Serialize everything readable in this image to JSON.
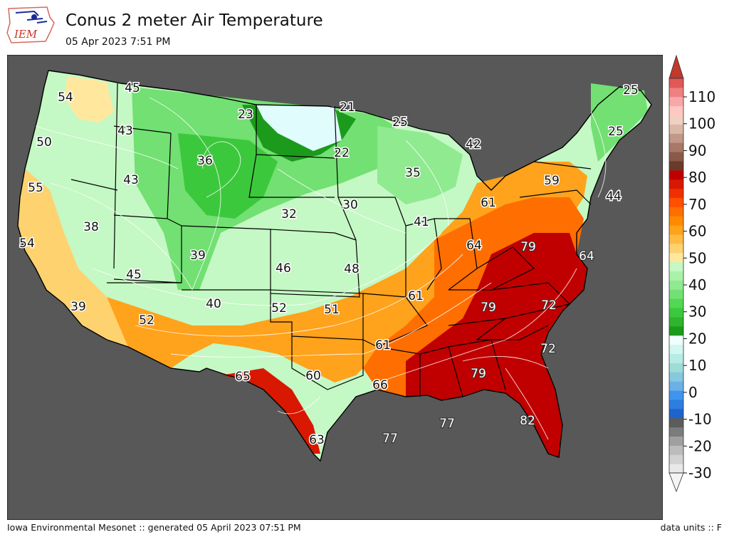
{
  "header": {
    "logo_text": "IEM",
    "title": "Conus 2 meter Air Temperature",
    "subtitle": "05 Apr 2023 7:51 PM"
  },
  "footer": {
    "left": "Iowa Environmental Mesonet :: generated 05 April 2023 07:51 PM",
    "right": "data units :: F"
  },
  "colors": {
    "ocean": "#585858",
    "border": "#000000",
    "contour": "#ffffff"
  },
  "colorbar": {
    "labels": [
      "110",
      "100",
      "90",
      "80",
      "70",
      "60",
      "50",
      "40",
      "30",
      "20",
      "10",
      "0",
      "-10",
      "-20",
      "-30"
    ],
    "bands": [
      "#e8e8e8",
      "#d2d2d2",
      "#bcbcbc",
      "#a0a0a0",
      "#7c7c7c",
      "#5c5c5c",
      "#1f63cc",
      "#2e7de0",
      "#3f94ee",
      "#6ab2e6",
      "#86c8de",
      "#9edcd8",
      "#b6ece4",
      "#d2f6f2",
      "#f0fefc",
      "#1b9a1b",
      "#2db52d",
      "#3cc83c",
      "#52d852",
      "#72e072",
      "#90ea90",
      "#aaf2aa",
      "#c4f8c4",
      "#ffe89e",
      "#ffd270",
      "#ffbb44",
      "#ffa21c",
      "#ff8a00",
      "#ff6e00",
      "#ff5000",
      "#f03000",
      "#d81800",
      "#c00000",
      "#6a3a2a",
      "#8a5a48",
      "#a87868",
      "#c29888",
      "#dab8a8",
      "#f0d0c0",
      "#ffc8c0",
      "#f8a8a8",
      "#f08080",
      "#e05858"
    ],
    "top_arrow": "#c0392b",
    "bottom_arrow": "#f4f4f4"
  },
  "map_values": [
    {
      "label": "54",
      "tone": "light"
    },
    {
      "label": "45",
      "tone": "light"
    },
    {
      "label": "21",
      "tone": "light"
    },
    {
      "label": "23",
      "tone": "light"
    },
    {
      "label": "25",
      "tone": "light"
    },
    {
      "label": "25",
      "tone": "light"
    },
    {
      "label": "25",
      "tone": "light"
    },
    {
      "label": "43",
      "tone": "light"
    },
    {
      "label": "50",
      "tone": "light"
    },
    {
      "label": "22",
      "tone": "light"
    },
    {
      "label": "42",
      "tone": "light"
    },
    {
      "label": "36",
      "tone": "light"
    },
    {
      "label": "35",
      "tone": "light"
    },
    {
      "label": "59",
      "tone": "light"
    },
    {
      "label": "43",
      "tone": "light"
    },
    {
      "label": "55",
      "tone": "light"
    },
    {
      "label": "44",
      "tone": "light"
    },
    {
      "label": "32",
      "tone": "light"
    },
    {
      "label": "30",
      "tone": "light"
    },
    {
      "label": "61",
      "tone": "light"
    },
    {
      "label": "38",
      "tone": "light"
    },
    {
      "label": "41",
      "tone": "light"
    },
    {
      "label": "54",
      "tone": "light"
    },
    {
      "label": "64",
      "tone": "light"
    },
    {
      "label": "79",
      "tone": "dark"
    },
    {
      "label": "39",
      "tone": "light"
    },
    {
      "label": "64",
      "tone": "dark"
    },
    {
      "label": "46",
      "tone": "light"
    },
    {
      "label": "48",
      "tone": "light"
    },
    {
      "label": "45",
      "tone": "light"
    },
    {
      "label": "61",
      "tone": "light"
    },
    {
      "label": "39",
      "tone": "light"
    },
    {
      "label": "40",
      "tone": "light"
    },
    {
      "label": "52",
      "tone": "light"
    },
    {
      "label": "51",
      "tone": "light"
    },
    {
      "label": "79",
      "tone": "dark"
    },
    {
      "label": "72",
      "tone": "dark"
    },
    {
      "label": "52",
      "tone": "light"
    },
    {
      "label": "61",
      "tone": "light"
    },
    {
      "label": "72",
      "tone": "dark"
    },
    {
      "label": "65",
      "tone": "light"
    },
    {
      "label": "60",
      "tone": "light"
    },
    {
      "label": "79",
      "tone": "dark"
    },
    {
      "label": "66",
      "tone": "light"
    },
    {
      "label": "77",
      "tone": "dark"
    },
    {
      "label": "82",
      "tone": "dark"
    },
    {
      "label": "77",
      "tone": "dark"
    },
    {
      "label": "63",
      "tone": "light"
    }
  ]
}
